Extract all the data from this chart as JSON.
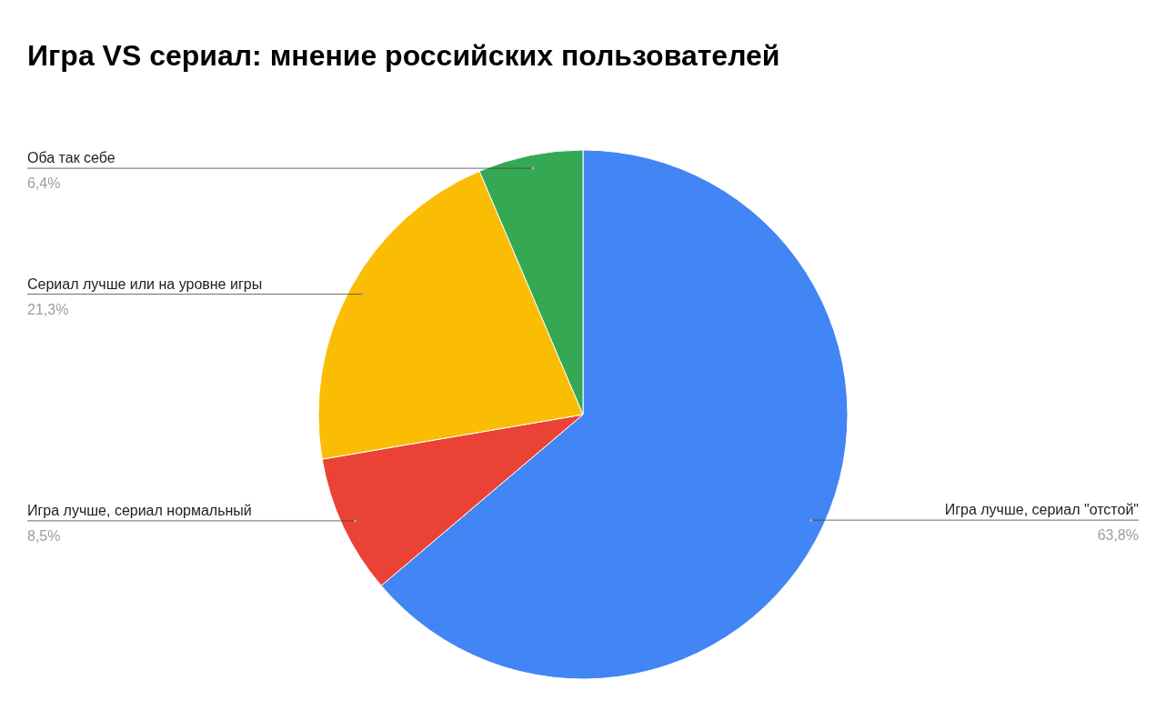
{
  "chart_data": {
    "type": "pie",
    "title": "Игра VS сериал: мнение российских пользователей",
    "categories": [
      "Игра лучше, сериал \"отстой\"",
      "Игра лучше, сериал нормальный",
      "Сериал лучше или на уровне игры",
      "Оба так себе"
    ],
    "values": [
      63.8,
      8.5,
      21.3,
      6.4
    ],
    "value_labels": [
      "63,8%",
      "8,5%",
      "21,3%",
      "6,4%"
    ],
    "colors": [
      "#4285f4",
      "#ea4335",
      "#fbbc04",
      "#34a853"
    ]
  }
}
